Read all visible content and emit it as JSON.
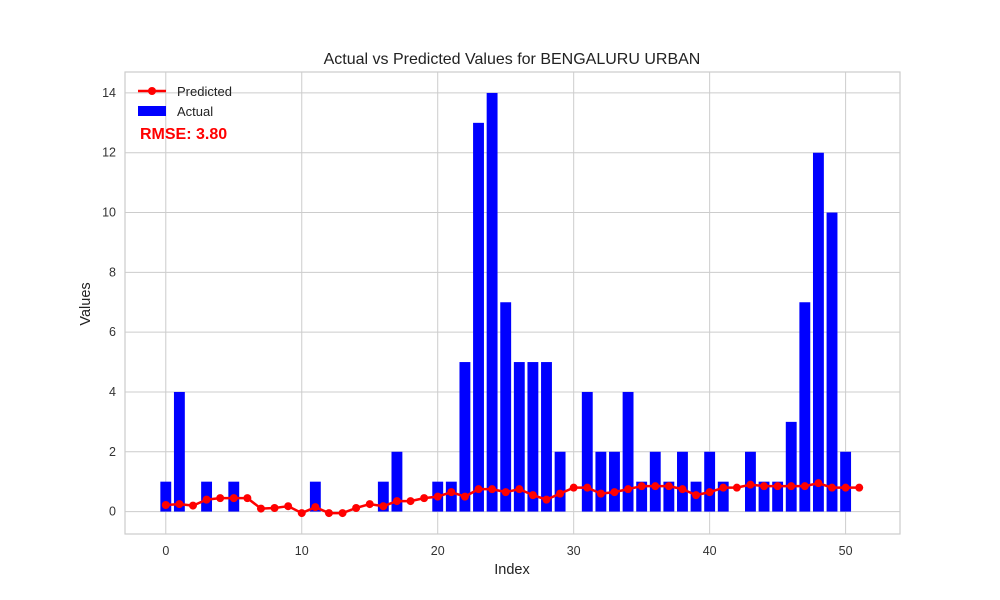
{
  "chart_data": {
    "type": "bar",
    "title": "Actual vs Predicted Values for BENGALURU URBAN",
    "xlabel": "Index",
    "ylabel": "Values",
    "xlim": [
      -3,
      54
    ],
    "ylim": [
      -0.75,
      14.7
    ],
    "xticks": [
      0,
      10,
      20,
      30,
      40,
      50
    ],
    "yticks": [
      0,
      2,
      4,
      6,
      8,
      10,
      12,
      14
    ],
    "grid": true,
    "legend_position": "top-left",
    "annotation": "RMSE: 3.80",
    "colors": {
      "actual": "#0000ff",
      "predicted": "#ff0000",
      "annotation": "#ff0000",
      "grid": "#cccccc",
      "frame": "#cccccc"
    },
    "series": [
      {
        "name": "Actual",
        "kind": "bar",
        "x": [
          0,
          1,
          2,
          3,
          4,
          5,
          6,
          7,
          8,
          9,
          10,
          11,
          12,
          13,
          14,
          15,
          16,
          17,
          18,
          19,
          20,
          21,
          22,
          23,
          24,
          25,
          26,
          27,
          28,
          29,
          30,
          31,
          32,
          33,
          34,
          35,
          36,
          37,
          38,
          39,
          40,
          41,
          42,
          43,
          44,
          45,
          46,
          47,
          48,
          49,
          50
        ],
        "values": [
          1,
          4,
          0,
          1,
          0,
          1,
          0,
          0,
          0,
          0,
          0,
          1,
          0,
          0,
          0,
          0,
          1,
          2,
          0,
          0,
          1,
          1,
          5,
          13,
          14,
          7,
          5,
          5,
          5,
          2,
          0,
          4,
          2,
          2,
          4,
          1,
          2,
          1,
          2,
          1,
          2,
          1,
          0,
          2,
          1,
          1,
          3,
          7,
          12,
          10,
          2
        ]
      },
      {
        "name": "Predicted",
        "kind": "line",
        "x": [
          0,
          1,
          2,
          3,
          4,
          5,
          6,
          7,
          8,
          9,
          10,
          11,
          12,
          13,
          14,
          15,
          16,
          17,
          18,
          19,
          20,
          21,
          22,
          23,
          24,
          25,
          26,
          27,
          28,
          29,
          30,
          31,
          32,
          33,
          34,
          35,
          36,
          37,
          38,
          39,
          40,
          41,
          42,
          43,
          44,
          45,
          46,
          47,
          48,
          49,
          50,
          51
        ],
        "values": [
          0.22,
          0.25,
          0.2,
          0.4,
          0.45,
          0.45,
          0.45,
          0.1,
          0.12,
          0.18,
          -0.05,
          0.15,
          -0.05,
          -0.05,
          0.12,
          0.25,
          0.18,
          0.35,
          0.35,
          0.45,
          0.5,
          0.65,
          0.5,
          0.75,
          0.75,
          0.65,
          0.75,
          0.55,
          0.4,
          0.6,
          0.8,
          0.8,
          0.6,
          0.65,
          0.75,
          0.85,
          0.85,
          0.85,
          0.75,
          0.55,
          0.65,
          0.8,
          0.8,
          0.9,
          0.85,
          0.85,
          0.85,
          0.85,
          0.95,
          0.8,
          0.8,
          0.8
        ]
      }
    ]
  }
}
